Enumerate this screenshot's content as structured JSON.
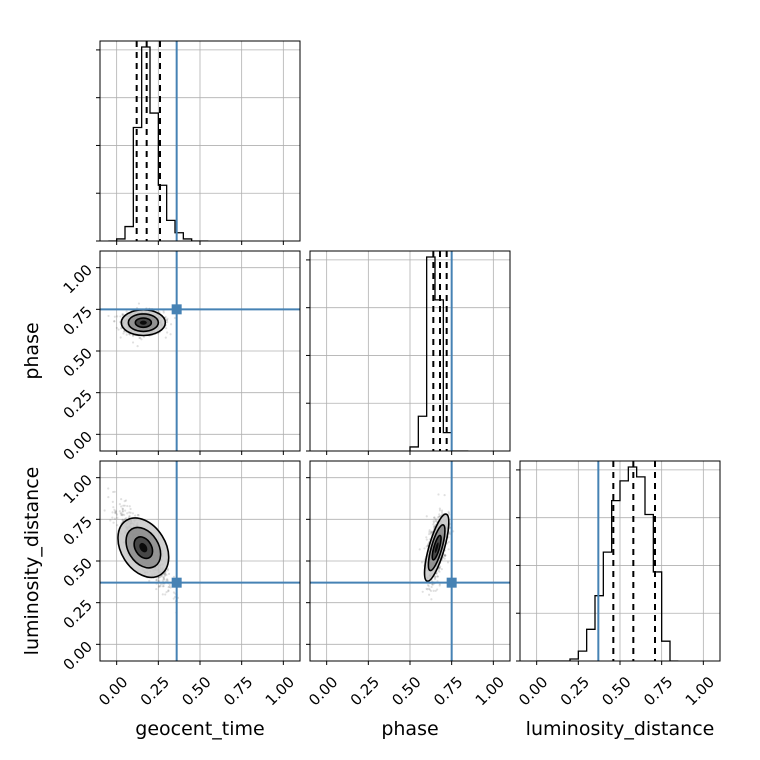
{
  "chart_data": {
    "type": "corner",
    "parameters": [
      "geocent_time",
      "phase",
      "luminosity_distance"
    ],
    "tick_labels": [
      "0.00",
      "0.25",
      "0.50",
      "0.75",
      "1.00"
    ],
    "axis_range": [
      -0.1,
      1.1
    ],
    "grid": true,
    "truth_color": "#4682b4",
    "truths": {
      "geocent_time": 0.36,
      "phase": 0.75,
      "luminosity_distance": 0.37
    },
    "quantiles": {
      "geocent_time": [
        0.12,
        0.18,
        0.26
      ],
      "phase": [
        0.64,
        0.68,
        0.72
      ],
      "luminosity_distance": [
        0.46,
        0.58,
        0.71
      ]
    },
    "histograms": {
      "geocent_time": {
        "bins": [
          -0.05,
          0.0,
          0.05,
          0.1,
          0.15,
          0.2,
          0.25,
          0.3,
          0.35,
          0.4,
          0.45,
          0.5,
          0.55
        ],
        "counts": [
          0,
          0.01,
          0.07,
          0.55,
          0.94,
          0.62,
          0.27,
          0.1,
          0.04,
          0.01,
          0.0,
          0.0
        ]
      },
      "phase": {
        "bins": [
          0.5,
          0.55,
          0.6,
          0.65,
          0.7,
          0.75,
          0.8,
          0.85
        ],
        "counts": [
          0.02,
          0.17,
          0.95,
          0.74,
          0.09,
          0.0,
          0.0
        ]
      },
      "luminosity_distance": {
        "bins": [
          0.0,
          0.2,
          0.25,
          0.3,
          0.35,
          0.4,
          0.45,
          0.5,
          0.55,
          0.6,
          0.65,
          0.7,
          0.75,
          0.8,
          0.85
        ],
        "counts": [
          0,
          0.01,
          0.05,
          0.16,
          0.33,
          0.55,
          0.81,
          0.91,
          0.98,
          0.93,
          0.74,
          0.45,
          0.1,
          0.0
        ]
      }
    },
    "joint_modes": {
      "geocent_time_phase": {
        "x": 0.16,
        "y": 0.67
      },
      "geocent_time_luminosity_distance": {
        "x": 0.16,
        "y": 0.58
      },
      "phase_luminosity_distance": {
        "x": 0.66,
        "y": 0.58
      }
    }
  }
}
